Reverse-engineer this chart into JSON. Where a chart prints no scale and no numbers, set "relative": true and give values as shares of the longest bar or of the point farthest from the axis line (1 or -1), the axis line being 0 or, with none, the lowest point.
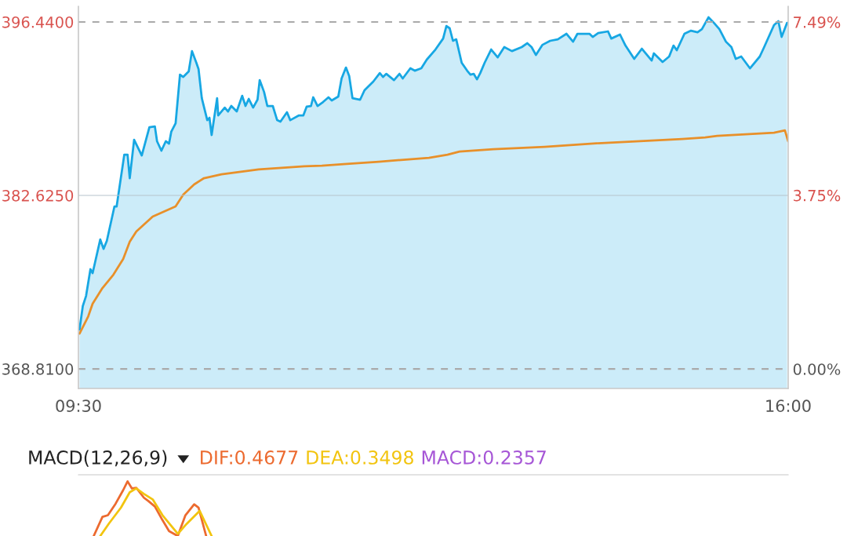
{
  "chart_data": [
    {
      "type": "area",
      "x": [
        9.51,
        9.54,
        9.57,
        9.61,
        9.63,
        9.7,
        9.73,
        9.76,
        9.83,
        9.85,
        9.92,
        9.95,
        9.97,
        10.01,
        10.08,
        10.15,
        10.2,
        10.22,
        10.26,
        10.3,
        10.33,
        10.35,
        10.39,
        10.43,
        10.46,
        10.51,
        10.54,
        10.58,
        10.6,
        10.63,
        10.68,
        10.7,
        10.72,
        10.77,
        10.78,
        10.84,
        10.87,
        10.9,
        10.95,
        11.0,
        11.03,
        11.06,
        11.1,
        11.14,
        11.16,
        11.2,
        11.23,
        11.28,
        11.32,
        11.35,
        11.41,
        11.44,
        11.52,
        11.56,
        11.59,
        11.63,
        11.65,
        11.69,
        11.74,
        11.79,
        11.82,
        11.88,
        11.91,
        11.95,
        11.98,
        12.01,
        12.08,
        12.12,
        12.2,
        12.26,
        12.29,
        12.32,
        12.39,
        12.44,
        12.47,
        12.54,
        12.58,
        12.64,
        12.69,
        12.77,
        12.84,
        12.87,
        12.9,
        12.93,
        12.96,
        13.01,
        13.06,
        13.09,
        13.12,
        13.15,
        13.18,
        13.22,
        13.28,
        13.34,
        13.4,
        13.47,
        13.56,
        13.61,
        13.65,
        13.69,
        13.75,
        13.82,
        13.89,
        13.97,
        14.03,
        14.07,
        14.18,
        14.21,
        14.26,
        14.35,
        14.38,
        14.46,
        14.51,
        14.59,
        14.66,
        14.75,
        14.77,
        14.85,
        14.91,
        14.95,
        14.98,
        15.05,
        15.11,
        15.17,
        15.21,
        15.27,
        15.32,
        15.37,
        15.43,
        15.48,
        15.52,
        15.57,
        15.65,
        15.74,
        15.78,
        15.87,
        15.91,
        15.94,
        15.99
      ],
      "series": [
        {
          "type": "area",
          "color": "#17a7e3",
          "values": [
            371.94,
            373.81,
            374.62,
            376.75,
            376.44,
            379.12,
            378.37,
            379.0,
            381.75,
            381.75,
            385.87,
            385.87,
            384.0,
            387.06,
            385.81,
            388.06,
            388.12,
            386.94,
            386.19,
            386.94,
            386.75,
            387.69,
            388.37,
            392.25,
            392.06,
            392.5,
            394.12,
            393.19,
            392.69,
            390.37,
            388.62,
            388.81,
            387.44,
            390.37,
            389.0,
            389.62,
            389.31,
            389.75,
            389.31,
            390.56,
            389.75,
            390.31,
            389.62,
            390.25,
            391.81,
            390.87,
            389.75,
            389.75,
            388.62,
            388.5,
            389.25,
            388.62,
            389.0,
            389.0,
            389.69,
            389.75,
            390.44,
            389.75,
            390.06,
            390.44,
            390.19,
            390.5,
            391.94,
            392.81,
            392.12,
            390.37,
            390.25,
            391.0,
            391.69,
            392.37,
            392.06,
            392.31,
            391.81,
            392.31,
            391.94,
            392.75,
            392.56,
            392.75,
            393.44,
            394.25,
            395.12,
            396.12,
            395.94,
            394.94,
            395.06,
            393.19,
            392.56,
            392.25,
            392.31,
            391.87,
            392.37,
            393.19,
            394.25,
            393.62,
            394.44,
            394.12,
            394.44,
            394.75,
            394.44,
            393.81,
            394.62,
            394.94,
            395.06,
            395.5,
            394.87,
            395.5,
            395.5,
            395.25,
            395.56,
            395.69,
            395.12,
            395.44,
            394.56,
            393.5,
            394.31,
            393.37,
            393.94,
            393.25,
            393.69,
            394.56,
            394.19,
            395.5,
            395.75,
            395.62,
            395.87,
            396.81,
            396.37,
            395.87,
            394.87,
            394.44,
            393.5,
            393.69,
            392.75,
            393.69,
            394.44,
            396.19,
            396.5,
            395.25,
            396.37
          ]
        },
        {
          "type": "line",
          "color": "#e8902a",
          "x": [
            9.51,
            9.59,
            9.63,
            9.72,
            9.82,
            9.91,
            9.97,
            10.03,
            10.18,
            10.39,
            10.46,
            10.56,
            10.65,
            10.81,
            11.15,
            11.57,
            11.73,
            11.93,
            12.25,
            12.71,
            12.88,
            12.99,
            13.3,
            13.77,
            14.19,
            15.03,
            15.24,
            15.35,
            15.87,
            15.97,
            16.0
          ],
          "values": [
            371.62,
            373.0,
            374.0,
            375.25,
            376.31,
            377.56,
            378.94,
            379.75,
            380.94,
            381.75,
            382.69,
            383.5,
            384.0,
            384.31,
            384.69,
            384.94,
            385.0,
            385.12,
            385.31,
            385.62,
            385.87,
            386.12,
            386.31,
            386.5,
            386.75,
            387.12,
            387.25,
            387.37,
            387.62,
            387.81,
            386.94
          ]
        }
      ],
      "xlim": [
        9.5,
        16
      ],
      "xticks": [
        {
          "value": 9.5,
          "label": "09:30"
        },
        {
          "value": 16,
          "label": "16:00"
        }
      ],
      "ylim": [
        367.25,
        397.69
      ],
      "yticks": [
        {
          "value": 368.81,
          "label": "368.8100"
        },
        {
          "value": 382.625,
          "label": "382.6250"
        },
        {
          "value": 396.44,
          "label": "396.4400"
        }
      ],
      "y2lim": [
        -0.42,
        7.83
      ],
      "y2ticks": [
        {
          "value": 0,
          "label": "0.00%"
        },
        {
          "value": 3.75,
          "label": "3.75%"
        },
        {
          "value": 7.49,
          "label": "7.49%"
        }
      ],
      "ref_lines": [
        {
          "axis": "y",
          "value": 396.44,
          "color": "#aaaaaa",
          "line_style": "dashed"
        },
        {
          "axis": "y",
          "value": 382.625,
          "color": "#b5c3cc",
          "line_style": "solid"
        },
        {
          "axis": "y",
          "value": 368.81,
          "color": "#aaaaaa",
          "line_style": "dashed"
        }
      ]
    },
    {
      "type": "line",
      "title": "MACD(12,26,9)",
      "relative": true,
      "xlim": [
        9.5,
        16
      ],
      "series": [
        {
          "name": "DIF:0.4677",
          "color": "#ec6a2f",
          "x": [
            9.64,
            9.72,
            9.77,
            9.84,
            9.91,
            9.95,
            9.99,
            10.03,
            10.1,
            10.14,
            10.2,
            10.27,
            10.33,
            10.41,
            10.48,
            10.56,
            10.6,
            10.67
          ],
          "values": [
            0,
            0.35,
            0.38,
            0.59,
            0.84,
            1,
            0.87,
            0.88,
            0.7,
            0.64,
            0.54,
            0.29,
            0.09,
            0,
            0.38,
            0.58,
            0.52,
            0
          ]
        },
        {
          "name": "DEA:0.3498",
          "color": "#f2c40f",
          "x": [
            9.7,
            9.78,
            9.89,
            9.97,
            10.03,
            10.1,
            10.18,
            10.27,
            10.41,
            10.49,
            10.61,
            10.72
          ],
          "values": [
            0,
            0.23,
            0.52,
            0.8,
            0.87,
            0.77,
            0.67,
            0.38,
            0.04,
            0.22,
            0.46,
            0
          ]
        },
        {
          "name": "MACD:0.2357",
          "color": "#a656d6"
        }
      ]
    }
  ]
}
